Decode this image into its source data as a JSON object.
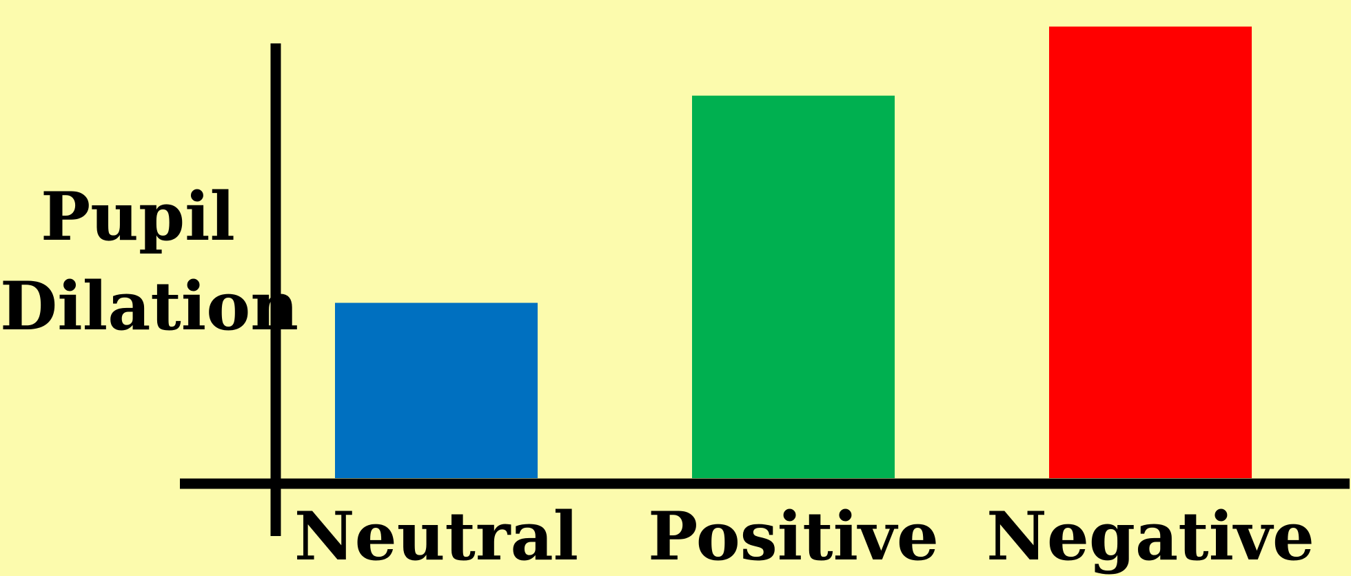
{
  "chart_data": {
    "type": "bar",
    "title": "",
    "xlabel": "",
    "ylabel": "Pupil\nDilation",
    "categories": [
      "Neutral",
      "Positive",
      "Negative"
    ],
    "values": [
      33,
      72,
      85
    ],
    "ylim": [
      0,
      90
    ],
    "colors": [
      "#0070C0",
      "#00B050",
      "#FF0000"
    ],
    "grid": false,
    "legend": "none",
    "tick_labels_y": false
  }
}
